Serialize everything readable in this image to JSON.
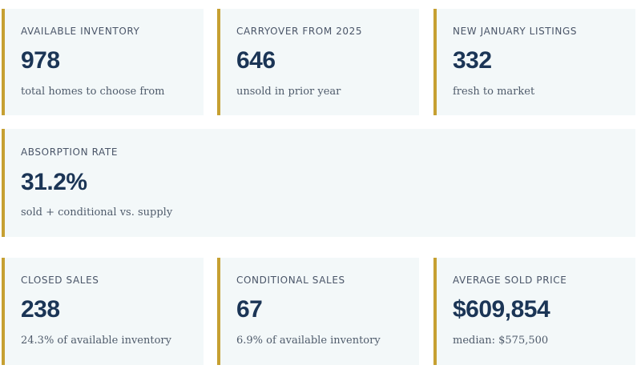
{
  "stats": {
    "available_inventory": {
      "label": "AVAILABLE INVENTORY",
      "value": "978",
      "description": "total homes to choose from"
    },
    "carryover": {
      "label": "CARRYOVER FROM 2025",
      "value": "646",
      "description": "unsold in prior year"
    },
    "new_listings": {
      "label": "NEW JANUARY LISTINGS",
      "value": "332",
      "description": "fresh to market"
    },
    "absorption_rate": {
      "label": "ABSORPTION RATE",
      "value": "31.2%",
      "description": "sold + conditional vs. supply"
    },
    "closed_sales": {
      "label": "CLOSED SALES",
      "value": "238",
      "description": "24.3% of available inventory"
    },
    "conditional_sales": {
      "label": "CONDITIONAL SALES",
      "value": "67",
      "description": "6.9% of available inventory"
    },
    "average_sold_price": {
      "label": "AVERAGE SOLD PRICE",
      "value": "$609,854",
      "description": "median: $575,500"
    }
  },
  "colors": {
    "accent": "#c6a032",
    "card_background": "#f3f8f9",
    "value_text": "#1b3556",
    "label_text": "#4a5568"
  }
}
